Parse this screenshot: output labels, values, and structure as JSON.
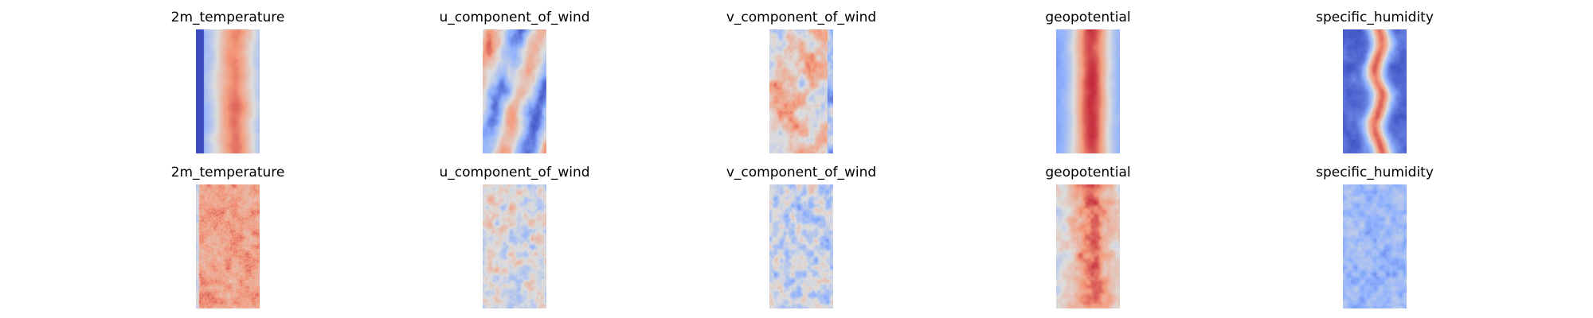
{
  "chart_data": {
    "type": "heatmap",
    "colormap": "coolwarm",
    "colormap_stops": [
      "#3b4cc0",
      "#8db0fe",
      "#dddddd",
      "#f49a7b",
      "#b40426"
    ],
    "grid": false,
    "rows": [
      {
        "panels": [
          {
            "title": "2m_temperature",
            "pattern": "temp_smooth"
          },
          {
            "title": "u_component_of_wind",
            "pattern": "uwind_smooth"
          },
          {
            "title": "v_component_of_wind",
            "pattern": "vwind_smooth"
          },
          {
            "title": "geopotential",
            "pattern": "geo_smooth"
          },
          {
            "title": "specific_humidity",
            "pattern": "hum_smooth"
          }
        ]
      },
      {
        "panels": [
          {
            "title": "2m_temperature",
            "pattern": "temp_noisy"
          },
          {
            "title": "u_component_of_wind",
            "pattern": "uwind_noisy"
          },
          {
            "title": "v_component_of_wind",
            "pattern": "vwind_noisy"
          },
          {
            "title": "geopotential",
            "pattern": "geo_noisy"
          },
          {
            "title": "specific_humidity",
            "pattern": "hum_noisy"
          }
        ]
      }
    ]
  }
}
